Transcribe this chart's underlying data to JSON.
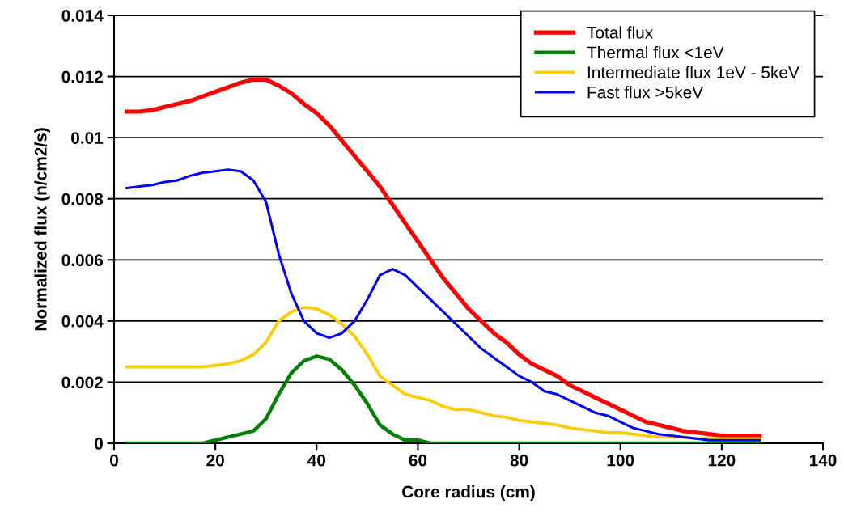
{
  "chart_data": {
    "type": "line",
    "xlabel": "Core radius (cm)",
    "ylabel": "Normalized flux (n/cm2/s)",
    "x": [
      2.5,
      5,
      7.5,
      10,
      12.5,
      15,
      17.5,
      20,
      22.5,
      25,
      27.5,
      30,
      32.5,
      35,
      37.5,
      40,
      42.5,
      45,
      47.5,
      50,
      52.5,
      55,
      57.5,
      60,
      62.5,
      65,
      67.5,
      70,
      72.5,
      75,
      77.5,
      80,
      82.5,
      85,
      87.5,
      90,
      92.5,
      95,
      97.5,
      100,
      102.5,
      105,
      107.5,
      110,
      112.5,
      115,
      117.5,
      120,
      122.5,
      125,
      127.5
    ],
    "series": [
      {
        "name": "Total flux",
        "color": "#ff0000",
        "values": [
          0.01085,
          0.01085,
          0.0109,
          0.011,
          0.0111,
          0.0112,
          0.01135,
          0.0115,
          0.01165,
          0.0118,
          0.0119,
          0.0119,
          0.0117,
          0.01145,
          0.0111,
          0.0108,
          0.0104,
          0.0099,
          0.0094,
          0.0089,
          0.0084,
          0.0078,
          0.0072,
          0.0066,
          0.006,
          0.0054,
          0.0049,
          0.0044,
          0.004,
          0.0036,
          0.0033,
          0.0029,
          0.0026,
          0.0024,
          0.0022,
          0.0019,
          0.0017,
          0.0015,
          0.0013,
          0.0011,
          0.0009,
          0.0007,
          0.0006,
          0.0005,
          0.0004,
          0.00035,
          0.0003,
          0.00025,
          0.00025,
          0.00025,
          0.00025
        ]
      },
      {
        "name": "Thermal flux <1eV",
        "color": "#008000",
        "values": [
          0,
          0,
          0,
          0,
          0,
          0,
          0,
          0.0001,
          0.0002,
          0.0003,
          0.0004,
          0.0008,
          0.0016,
          0.0023,
          0.0027,
          0.00285,
          0.00275,
          0.0024,
          0.0019,
          0.0013,
          0.0006,
          0.0003,
          0.0001,
          0.0001,
          0,
          0,
          0,
          0,
          0,
          0,
          0,
          0,
          0,
          0,
          0,
          0,
          0,
          0,
          0,
          0,
          0,
          0,
          0,
          0,
          0,
          0,
          0,
          0,
          0,
          0,
          0
        ]
      },
      {
        "name": "Intermediate flux 1eV - 5keV",
        "color": "#ffcc00",
        "values": [
          0.0025,
          0.0025,
          0.0025,
          0.0025,
          0.0025,
          0.0025,
          0.0025,
          0.00255,
          0.0026,
          0.0027,
          0.0029,
          0.0033,
          0.004,
          0.0043,
          0.00445,
          0.0044,
          0.0042,
          0.0039,
          0.0035,
          0.0029,
          0.0022,
          0.0019,
          0.0016,
          0.0015,
          0.0014,
          0.0012,
          0.0011,
          0.0011,
          0.001,
          0.0009,
          0.00085,
          0.00075,
          0.0007,
          0.00065,
          0.0006,
          0.0005,
          0.00045,
          0.0004,
          0.00035,
          0.00035,
          0.0003,
          0.00025,
          0.0002,
          0.0002,
          0.0002,
          0.00015,
          0.00015,
          0.00015,
          0.00015,
          0.00015,
          0.00015
        ]
      },
      {
        "name": "Fast flux >5keV",
        "color": "#0000ff",
        "values": [
          0.00835,
          0.0084,
          0.00845,
          0.00855,
          0.0086,
          0.00875,
          0.00885,
          0.0089,
          0.00895,
          0.0089,
          0.0086,
          0.0079,
          0.0062,
          0.0049,
          0.004,
          0.0036,
          0.00345,
          0.0036,
          0.004,
          0.0047,
          0.0055,
          0.0057,
          0.0055,
          0.0051,
          0.0047,
          0.0043,
          0.0039,
          0.0035,
          0.0031,
          0.0028,
          0.0025,
          0.0022,
          0.002,
          0.0017,
          0.0016,
          0.0014,
          0.0012,
          0.001,
          0.0009,
          0.0007,
          0.0005,
          0.0004,
          0.0003,
          0.00025,
          0.0002,
          0.00015,
          0.0001,
          0.0001,
          0.0001,
          0.0001,
          0.0001
        ]
      }
    ],
    "xlim": [
      0,
      140
    ],
    "xticks": [
      0,
      20,
      40,
      60,
      80,
      100,
      120,
      140
    ],
    "ylim": [
      0,
      0.014
    ],
    "yticks": [
      {
        "value": 0,
        "label": "0"
      },
      {
        "value": 0.002,
        "label": "0.002"
      },
      {
        "value": 0.004,
        "label": "0.004"
      },
      {
        "value": 0.006,
        "label": "0.006"
      },
      {
        "value": 0.008,
        "label": "0.008"
      },
      {
        "value": 0.01,
        "label": "0.01"
      },
      {
        "value": 0.012,
        "label": "0.012"
      },
      {
        "value": 0.014,
        "label": "0.014"
      }
    ],
    "grid": "y",
    "legend": "top right",
    "marker": "none",
    "line_style": "solid"
  }
}
